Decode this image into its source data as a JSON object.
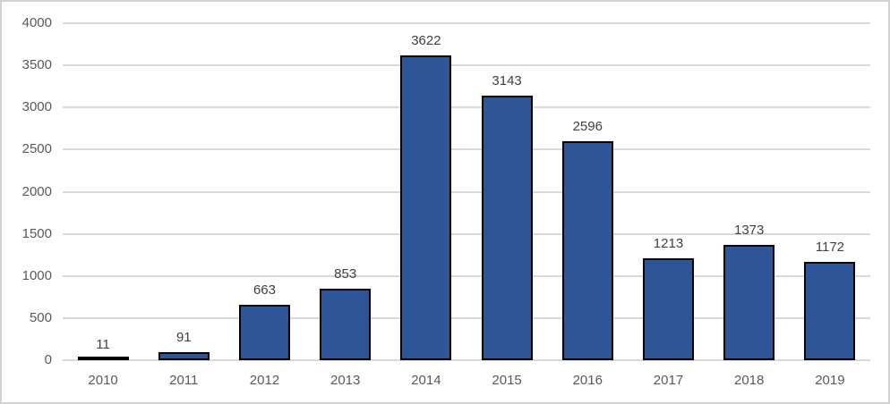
{
  "chart_data": {
    "type": "bar",
    "categories": [
      "2010",
      "2011",
      "2012",
      "2013",
      "2014",
      "2015",
      "2016",
      "2017",
      "2018",
      "2019"
    ],
    "values": [
      11,
      91,
      663,
      853,
      3622,
      3143,
      2596,
      1213,
      1373,
      1172
    ],
    "data_labels": [
      "11",
      "91",
      "663",
      "853",
      "3622",
      "3143",
      "2596",
      "1213",
      "1373",
      "1172"
    ],
    "title": "",
    "xlabel": "",
    "ylabel": "",
    "ylim": [
      0,
      4000
    ],
    "ytick_interval": 500,
    "yticks": [
      "0",
      "500",
      "1000",
      "1500",
      "2000",
      "2500",
      "3000",
      "3500",
      "4000"
    ],
    "grid": true,
    "legend": false,
    "show_data_labels": true,
    "colors": {
      "bar_fill": "#2e5597",
      "bar_border": "#000000",
      "gridline": "#d9d9d9",
      "axis_label_text": "#595959",
      "data_label_text": "#404040",
      "frame_border": "#d2d2d2",
      "background": "#ffffff"
    }
  }
}
